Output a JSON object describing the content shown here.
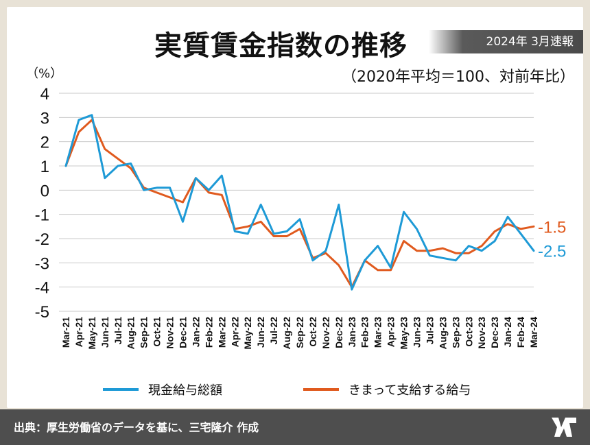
{
  "header": {
    "title": "実質賃金指数の推移",
    "badge": "2024年 3月速報",
    "subtitle": "（2020年平均＝100、対前年比）",
    "unit": "（%）"
  },
  "footer": {
    "source": "出典：厚生労働省のデータを基に、三宅隆介 作成"
  },
  "colors": {
    "blue": "#1e9ad6",
    "orange": "#e05a1e",
    "grid": "#c8c8c8"
  },
  "chart_data": {
    "type": "line",
    "title": "実質賃金指数の推移",
    "ylabel": "（%）",
    "ylim": [
      -5,
      4
    ],
    "yticks": [
      "4",
      "3",
      "2",
      "1",
      "0",
      "-1",
      "-2",
      "-3",
      "-4",
      "-5"
    ],
    "grid": true,
    "legend_position": "bottom",
    "categories": [
      "Mar-21",
      "Apr-21",
      "May-21",
      "Jun-21",
      "Jul-21",
      "Aug-21",
      "Sep-21",
      "Oct-21",
      "Nov-21",
      "Dec-21",
      "Jan-22",
      "Feb-22",
      "Mar-22",
      "Apr-22",
      "May-22",
      "Jun-22",
      "Jul-22",
      "Aug-22",
      "Sep-22",
      "Oct-22",
      "Nov-22",
      "Dec-22",
      "Jan-23",
      "Feb-23",
      "Mar-23",
      "Apr-23",
      "May-23",
      "Jun-23",
      "Jul-23",
      "Aug-23",
      "Sep-23",
      "Oct-23",
      "Nov-23",
      "Dec-23",
      "Jan-24",
      "Feb-24",
      "Mar-24"
    ],
    "series": [
      {
        "name": "現金給与総額",
        "color": "#1e9ad6",
        "end_label": "-2.5",
        "values": [
          1.0,
          2.9,
          3.1,
          0.5,
          1.0,
          1.1,
          0.0,
          0.1,
          0.1,
          -1.3,
          0.5,
          0.0,
          0.6,
          -1.7,
          -1.8,
          -0.6,
          -1.8,
          -1.7,
          -1.2,
          -2.9,
          -2.5,
          -0.6,
          -4.1,
          -2.9,
          -2.3,
          -3.2,
          -0.9,
          -1.6,
          -2.7,
          -2.8,
          -2.9,
          -2.3,
          -2.5,
          -2.1,
          -1.1,
          -1.8,
          -2.5
        ]
      },
      {
        "name": "きまって支給する給与",
        "color": "#e05a1e",
        "end_label": "-1.5",
        "values": [
          1.0,
          2.4,
          2.9,
          1.7,
          1.3,
          0.9,
          0.1,
          -0.1,
          -0.3,
          -0.5,
          0.5,
          -0.1,
          -0.2,
          -1.6,
          -1.5,
          -1.3,
          -1.9,
          -1.9,
          -1.6,
          -2.8,
          -2.6,
          -3.1,
          -4.0,
          -2.9,
          -3.3,
          -3.3,
          -2.1,
          -2.5,
          -2.5,
          -2.4,
          -2.6,
          -2.6,
          -2.3,
          -1.7,
          -1.4,
          -1.6,
          -1.5
        ]
      }
    ]
  }
}
